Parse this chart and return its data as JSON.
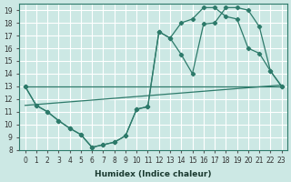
{
  "xlabel": "Humidex (Indice chaleur)",
  "bg_color": "#cce8e4",
  "grid_color": "#ffffff",
  "line_color": "#2d7a6a",
  "xlim": [
    -0.5,
    23.5
  ],
  "ylim": [
    8,
    19.5
  ],
  "xticks": [
    0,
    1,
    2,
    3,
    4,
    5,
    6,
    7,
    8,
    9,
    10,
    11,
    12,
    13,
    14,
    15,
    16,
    17,
    18,
    19,
    20,
    21,
    22,
    23
  ],
  "yticks": [
    8,
    9,
    10,
    11,
    12,
    13,
    14,
    15,
    16,
    17,
    18,
    19
  ],
  "series_jagged1_x": [
    0,
    1,
    2,
    3,
    4,
    5,
    6,
    7,
    8,
    9,
    10,
    11,
    12,
    13,
    14,
    15,
    16,
    17,
    18,
    19,
    20,
    21,
    22,
    23
  ],
  "series_jagged1_y": [
    13,
    11.5,
    11,
    10.3,
    9.7,
    9.2,
    8.2,
    8.4,
    8.6,
    9.1,
    11.2,
    11.4,
    17.3,
    16.8,
    15.5,
    14.0,
    17.9,
    18.0,
    19.2,
    19.2,
    19.0,
    17.7,
    14.2,
    13.0
  ],
  "series_jagged2_x": [
    0,
    1,
    2,
    3,
    4,
    5,
    6,
    7,
    8,
    9,
    10,
    11,
    12,
    13,
    14,
    15,
    16,
    17,
    18,
    19,
    20,
    21,
    22,
    23
  ],
  "series_jagged2_y": [
    13,
    11.5,
    11,
    10.3,
    9.7,
    9.2,
    8.2,
    8.4,
    8.6,
    9.1,
    11.2,
    11.4,
    17.3,
    16.8,
    18.0,
    18.3,
    19.2,
    19.2,
    18.5,
    18.3,
    16.0,
    15.6,
    14.2,
    13.0
  ],
  "trend1_x": [
    0,
    23
  ],
  "trend1_y": [
    13.0,
    13.0
  ],
  "trend2_x": [
    0,
    23
  ],
  "trend2_y": [
    11.5,
    13.1
  ]
}
